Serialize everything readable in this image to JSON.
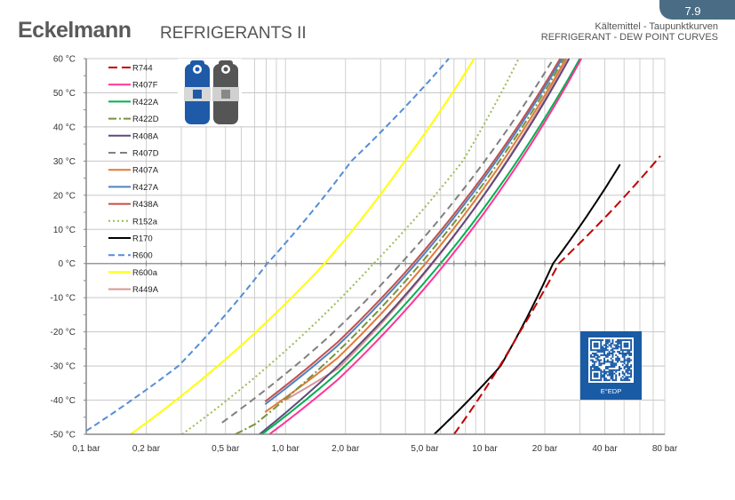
{
  "header": {
    "logo": "Eckelmann",
    "title": "REFRIGERANTS II",
    "page_number": "7.9",
    "subtitle_de": "Kältemittel - Taupunktkurven",
    "subtitle_en": "REFRIGERANT - DEW POINT CURVES"
  },
  "qr": {
    "label": "E°EDP",
    "color": "#1a5ba6"
  },
  "chart_data": {
    "type": "line",
    "title": "REFRIGERANT - DEW POINT CURVES",
    "xlabel": "",
    "ylabel": "",
    "xscale": "log",
    "xlim": [
      0.1,
      80
    ],
    "ylim": [
      -50,
      60
    ],
    "grid": true,
    "legend_position": "top-left",
    "x_ticks": [
      {
        "value": 0.1,
        "label": "0,1 bar"
      },
      {
        "value": 0.2,
        "label": "0,2 bar"
      },
      {
        "value": 0.5,
        "label": "0,5 bar"
      },
      {
        "value": 1,
        "label": "1,0 bar"
      },
      {
        "value": 2,
        "label": "2,0 bar"
      },
      {
        "value": 5,
        "label": "5,0 bar"
      },
      {
        "value": 10,
        "label": "10 bar"
      },
      {
        "value": 20,
        "label": "20 bar"
      },
      {
        "value": 40,
        "label": "40 bar"
      },
      {
        "value": 80,
        "label": "80 bar"
      }
    ],
    "y_ticks": [
      {
        "value": 60,
        "label": "60 °C"
      },
      {
        "value": 50,
        "label": "50 °C"
      },
      {
        "value": 40,
        "label": "40 °C"
      },
      {
        "value": 30,
        "label": "30 °C"
      },
      {
        "value": 20,
        "label": "20 °C"
      },
      {
        "value": 10,
        "label": "10 °C"
      },
      {
        "value": 0,
        "label": "0 °C"
      },
      {
        "value": -10,
        "label": "-10 °C"
      },
      {
        "value": -20,
        "label": "-20 °C"
      },
      {
        "value": -30,
        "label": "-30 °C"
      },
      {
        "value": -40,
        "label": "-40 °C"
      },
      {
        "value": -50,
        "label": "-50 °C"
      }
    ],
    "series": [
      {
        "name": "R744",
        "color": "#c00000",
        "dash": "10,5",
        "points": [
          [
            7.0,
            -50
          ],
          [
            15,
            -20
          ],
          [
            23.5,
            0
          ],
          [
            76,
            31.5
          ]
        ]
      },
      {
        "name": "R407F",
        "color": "#ff3399",
        "dash": "",
        "points": [
          [
            0.83,
            -50
          ],
          [
            1.83,
            -34
          ],
          [
            30.5,
            60
          ]
        ]
      },
      {
        "name": "R422A",
        "color": "#00b050",
        "dash": "",
        "points": [
          [
            0.76,
            -50
          ],
          [
            1.83,
            -32
          ],
          [
            30,
            60
          ]
        ]
      },
      {
        "name": "R422D",
        "color": "#77933c",
        "dash": "9,3,2,3",
        "points": [
          [
            0.56,
            -50
          ],
          [
            0.705,
            -47
          ],
          [
            25,
            60
          ]
        ]
      },
      {
        "name": "R408A",
        "color": "#604a7b",
        "dash": "",
        "points": [
          [
            0.74,
            -50
          ],
          [
            1.83,
            -30
          ],
          [
            26.5,
            60
          ]
        ]
      },
      {
        "name": "R407D",
        "color": "#808080",
        "dash": "8,5",
        "points": [
          [
            0.48,
            -46.6
          ],
          [
            1.61,
            -22
          ],
          [
            21.6,
            59
          ]
        ]
      },
      {
        "name": "R407A",
        "color": "#e07b39",
        "dash": "",
        "points": [
          [
            0.79,
            -43.5
          ],
          [
            1.83,
            -27.6
          ],
          [
            25.6,
            60
          ]
        ]
      },
      {
        "name": "R427A",
        "color": "#4f81bd",
        "dash": "",
        "points": [
          [
            0.79,
            -41.2
          ],
          [
            1.83,
            -24
          ],
          [
            24.4,
            60
          ]
        ]
      },
      {
        "name": "R438A",
        "color": "#c0504d",
        "dash": "",
        "points": [
          [
            0.79,
            -40.4
          ],
          [
            1.83,
            -23
          ],
          [
            23.9,
            60
          ]
        ]
      },
      {
        "name": "R152a",
        "color": "#9bbb59",
        "dash": "2,3",
        "points": [
          [
            0.303,
            -50
          ],
          [
            2.77,
            0
          ],
          [
            7.75,
            30
          ],
          [
            14.8,
            60
          ]
        ]
      },
      {
        "name": "R170",
        "color": "#000000",
        "dash": "",
        "points": [
          [
            5.57,
            -50
          ],
          [
            12,
            -30
          ],
          [
            22,
            0
          ],
          [
            47.7,
            29
          ]
        ]
      },
      {
        "name": "R600",
        "color": "#558ed5",
        "dash": "7,4",
        "points": [
          [
            0.1,
            -49
          ],
          [
            0.29,
            -30
          ],
          [
            0.81,
            0
          ],
          [
            2.14,
            30
          ],
          [
            6.6,
            60
          ]
        ]
      },
      {
        "name": "R600a",
        "color": "#ffff00",
        "dash": "",
        "points": [
          [
            0.167,
            -50
          ],
          [
            1.57,
            0
          ],
          [
            3.97,
            30
          ],
          [
            8.84,
            60
          ]
        ]
      },
      {
        "name": "R449A",
        "color": "#d99694",
        "dash": "",
        "points": [
          [
            0.99,
            -40.1
          ],
          [
            1.83,
            -30.8
          ],
          [
            25.9,
            60
          ]
        ]
      }
    ]
  }
}
